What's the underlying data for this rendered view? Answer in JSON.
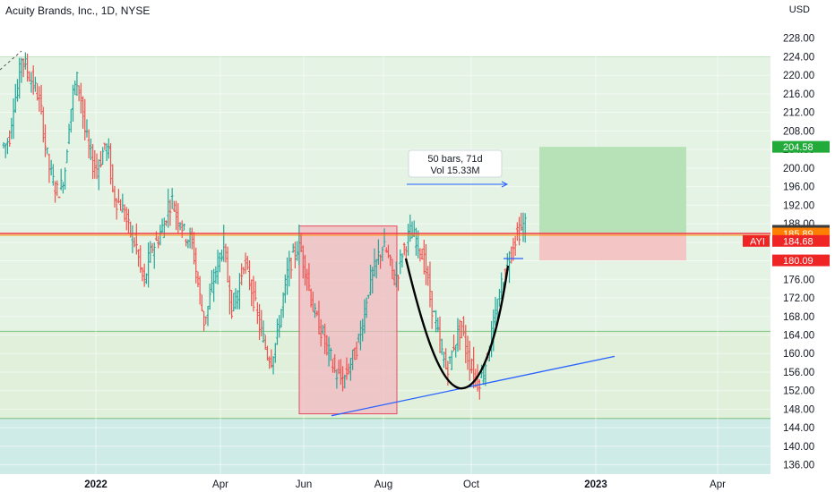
{
  "header": {
    "title": "Acuity Brands, Inc., 1D, NYSE",
    "currency": "USD"
  },
  "colors": {
    "up": "#26a69a",
    "down": "#ef5350",
    "zone_upper": "#e4f3e4",
    "zone_middle": "#e0f0db",
    "zone_lower": "#cfebe8",
    "resistance_line": "#f23645",
    "target_zone": "#b7e1b7",
    "stop_zone": "#f3c5c5",
    "range_box": "#f2b8c0",
    "trendline": "#2962ff",
    "cup_curve": "#000000",
    "badge_green": "#22ab3a",
    "badge_orange": "#ff7f00",
    "badge_dark": "#3b3b3b",
    "badge_red": "#ef2525"
  },
  "chart_data": {
    "type": "candlestick",
    "ylim": [
      134,
      232
    ],
    "y_ticks": [
      "136.00",
      "140.00",
      "144.00",
      "148.00",
      "152.00",
      "156.00",
      "160.00",
      "164.00",
      "168.00",
      "172.00",
      "176.00",
      "180.00",
      "184.00",
      "188.00",
      "192.00",
      "196.00",
      "200.00",
      "204.00",
      "208.00",
      "212.00",
      "216.00",
      "220.00",
      "224.00",
      "228.00"
    ],
    "x_ticks": [
      {
        "label": "2022",
        "bold": true
      },
      {
        "label": "Apr",
        "bold": false
      },
      {
        "label": "Jun",
        "bold": false
      },
      {
        "label": "Aug",
        "bold": false
      },
      {
        "label": "Oct",
        "bold": false
      },
      {
        "label": "2023",
        "bold": true
      },
      {
        "label": "Apr",
        "bold": false
      }
    ],
    "price_path": [
      205,
      207,
      214,
      217,
      224,
      222,
      220,
      218,
      216,
      212,
      205,
      200,
      197,
      195,
      196,
      200,
      210,
      216,
      219,
      215,
      208,
      204,
      201,
      200,
      202,
      205,
      203,
      195,
      193,
      192,
      190,
      187,
      185,
      183,
      178,
      175,
      180,
      183,
      184,
      186,
      188,
      192,
      193,
      190,
      189,
      186,
      185,
      184,
      178,
      172,
      167,
      170,
      174,
      178,
      181,
      184,
      176,
      170,
      172,
      175,
      180,
      177,
      174,
      170,
      166,
      163,
      160,
      159,
      162,
      167,
      172,
      177,
      180,
      182,
      184,
      180,
      177,
      172,
      168,
      166,
      164,
      161,
      159,
      156,
      155,
      154,
      156,
      158,
      160,
      163,
      167,
      172,
      176,
      178,
      181,
      183,
      182,
      179,
      176,
      178,
      182,
      184,
      186,
      185,
      184,
      181,
      178,
      172,
      168,
      164,
      160,
      157,
      158,
      162,
      164,
      166,
      161,
      158,
      156,
      154,
      155,
      158,
      162,
      166,
      170,
      175,
      178,
      181,
      184,
      186,
      187,
      188
    ],
    "levels": {
      "target": 204.58,
      "last": 186.09,
      "resistance": 185.89,
      "current": 184.68,
      "stop": 180.09,
      "zone_top": 224.0,
      "zone_mid": 164.8,
      "zone_low": 146.0
    },
    "annotations": {
      "range_box": {
        "top": 187.5,
        "bottom": 147.0
      },
      "measure": {
        "bars": "50 bars, 71d",
        "volume": "Vol 15.33M"
      },
      "symbol_tag": "AYI"
    }
  }
}
